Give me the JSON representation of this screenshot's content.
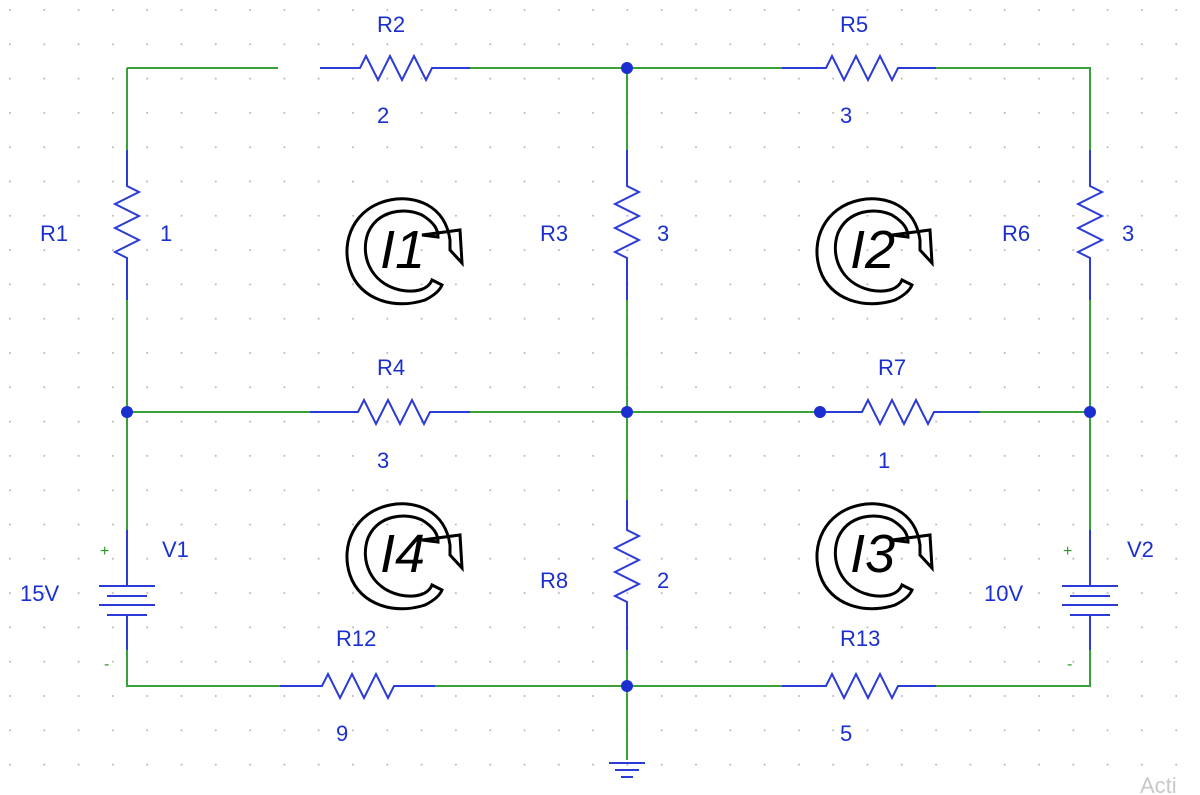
{
  "colors": {
    "wire": "#3aa13a",
    "component": "#2b3bd6",
    "text": "#1b2fd0",
    "grid_dot": "#b8b8b8"
  },
  "resistors": {
    "R1": {
      "name": "R1",
      "value": "1"
    },
    "R2": {
      "name": "R2",
      "value": "2"
    },
    "R3": {
      "name": "R3",
      "value": "3"
    },
    "R4": {
      "name": "R4",
      "value": "3"
    },
    "R5": {
      "name": "R5",
      "value": "3"
    },
    "R6": {
      "name": "R6",
      "value": "3"
    },
    "R7": {
      "name": "R7",
      "value": "1"
    },
    "R8": {
      "name": "R8",
      "value": "2"
    },
    "R12": {
      "name": "R12",
      "value": "9"
    },
    "R13": {
      "name": "R13",
      "value": "5"
    }
  },
  "sources": {
    "V1": {
      "name": "V1",
      "value": "15V",
      "plus": "+",
      "minus": "-"
    },
    "V2": {
      "name": "V2",
      "value": "10V",
      "plus": "+",
      "minus": "-"
    }
  },
  "loops": {
    "I1": "I1",
    "I2": "I2",
    "I3": "I3",
    "I4": "I4"
  },
  "watermark": "Acti"
}
